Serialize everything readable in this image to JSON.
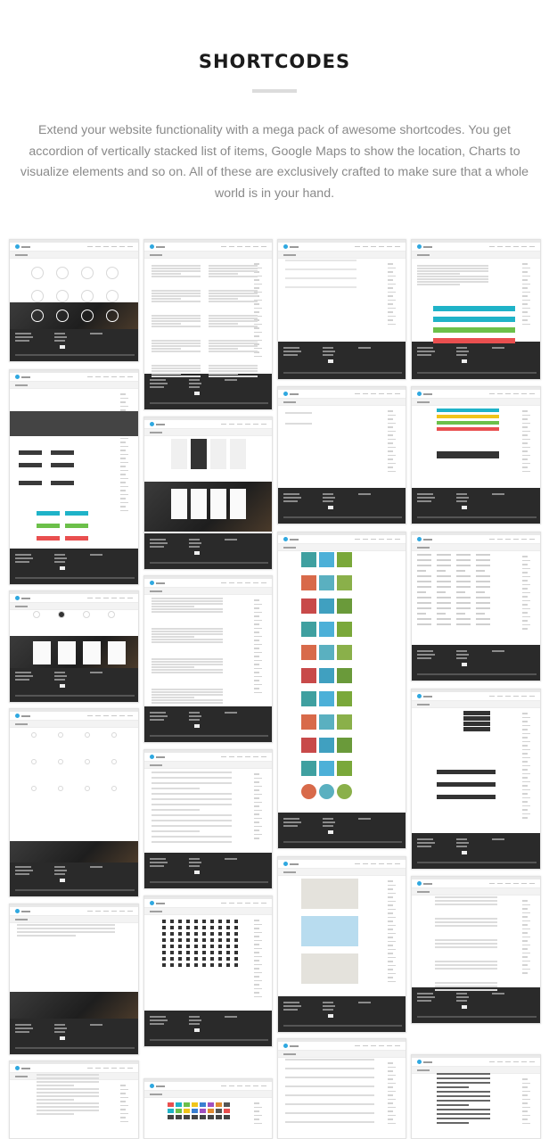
{
  "section": {
    "title": "SHORTCODES",
    "description": "Extend your website functionality with a mega pack of awesome shortcodes. You get accordion of vertically stacked list of items, Google Maps to show the location, Charts to visualize elements and so on. All of these are exclusively crafted to make sure that a whole world is in your hand."
  },
  "colors": {
    "accent": "#2fa8e0",
    "footer": "#2a2a2a",
    "teal": "#1fb3c8",
    "blue": "#3a7fd1",
    "green": "#6cc04a",
    "red": "#e94f4f",
    "yellow": "#f0c419",
    "olive": "#8aa03a"
  },
  "screenshots": [
    {
      "id": "charts-circles"
    },
    {
      "id": "columns-text"
    },
    {
      "id": "accordion"
    },
    {
      "id": "progress-bars"
    },
    {
      "id": "buttons"
    },
    {
      "id": "pricing-tables"
    },
    {
      "id": "alerts"
    },
    {
      "id": "message-boxes"
    },
    {
      "id": "icon-boxes"
    },
    {
      "id": "typography"
    },
    {
      "id": "gallery-grid"
    },
    {
      "id": "icon-list"
    },
    {
      "id": "services"
    },
    {
      "id": "dividers"
    },
    {
      "id": "maps"
    },
    {
      "id": "tabs-toggles"
    },
    {
      "id": "testimonials"
    },
    {
      "id": "font-icons"
    },
    {
      "id": "tables"
    },
    {
      "id": "blockquotes"
    },
    {
      "id": "dropcaps"
    },
    {
      "id": "color-swatches"
    },
    {
      "id": "lists"
    }
  ]
}
